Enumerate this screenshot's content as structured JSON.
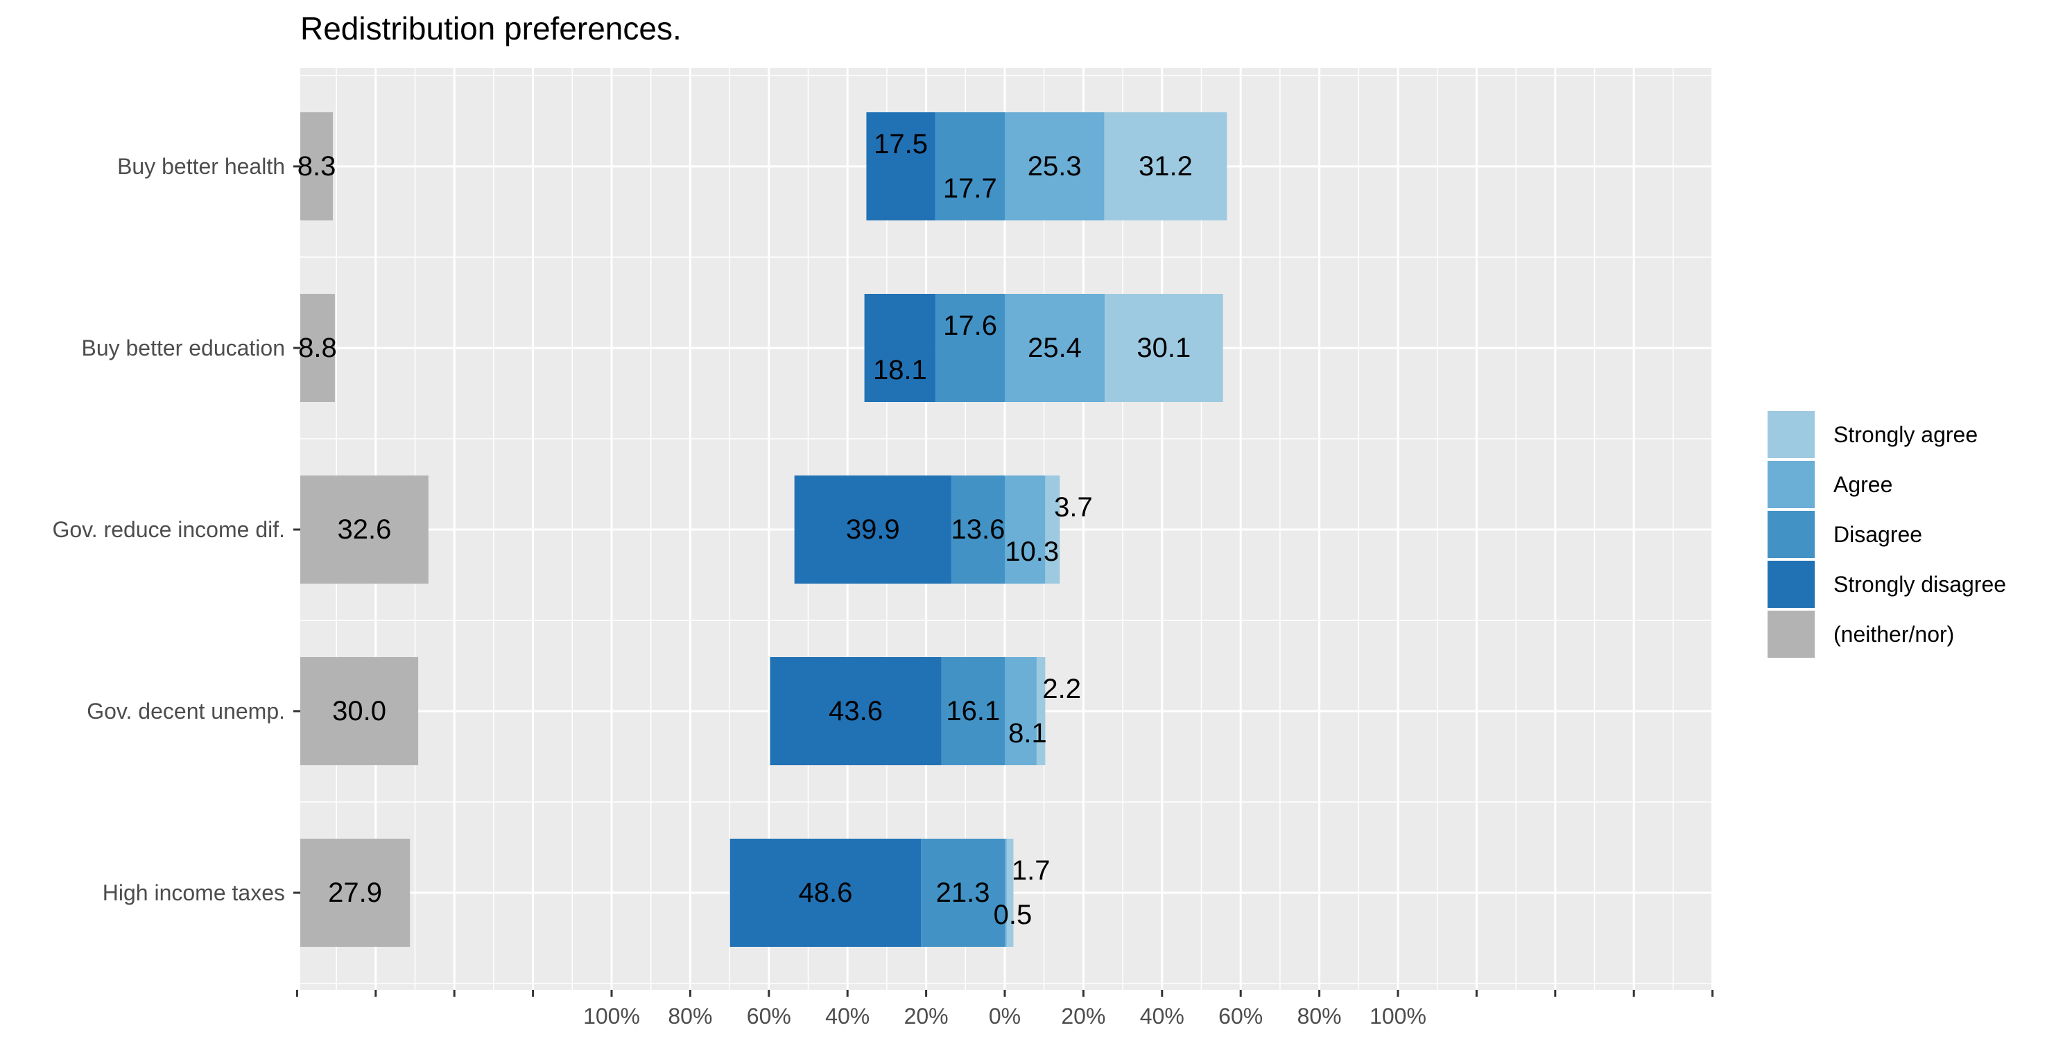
{
  "chart_data": {
    "type": "bar",
    "orientation": "horizontal",
    "layout": "diverging-stacked with separate neutral panel",
    "title": "Redistribution preferences.",
    "categories": [
      "Buy better health",
      "Buy better education",
      "Gov. reduce income dif.",
      "Gov. decent unemp.",
      "High income taxes"
    ],
    "series": [
      {
        "name": "Strongly agree",
        "color": "#9ECAE1",
        "side": "right",
        "values": [
          31.2,
          30.1,
          3.7,
          2.2,
          1.7
        ]
      },
      {
        "name": "Agree",
        "color": "#6BAED6",
        "side": "right",
        "values": [
          25.3,
          25.4,
          10.3,
          8.1,
          0.5
        ]
      },
      {
        "name": "Disagree",
        "color": "#4292C6",
        "side": "left",
        "values": [
          17.7,
          17.6,
          13.6,
          16.1,
          21.3
        ]
      },
      {
        "name": "Strongly disagree",
        "color": "#2171B5",
        "side": "left",
        "values": [
          17.5,
          18.1,
          39.9,
          43.6,
          48.6
        ]
      },
      {
        "name": "(neither/nor)",
        "color": "#B3B3B3",
        "side": "neutral",
        "values": [
          8.3,
          8.8,
          32.6,
          30.0,
          27.9
        ]
      }
    ],
    "value_labels": [
      [
        "17.5",
        "17.7",
        "25.3",
        "31.2",
        "8.3"
      ],
      [
        "18.1",
        "17.6",
        "25.4",
        "30.1",
        "8.8"
      ],
      [
        "39.9",
        "13.6",
        "10.3",
        "3.7",
        "32.6"
      ],
      [
        "43.6",
        "16.1",
        "8.1",
        "2.2",
        "30.0"
      ],
      [
        "48.6",
        "21.3",
        "0.5",
        "1.7",
        "27.9"
      ]
    ],
    "x_tick_labels": [
      "100%",
      "80%",
      "60%",
      "40%",
      "20%",
      "0%",
      "20%",
      "40%",
      "60%",
      "80%",
      "100%"
    ],
    "x_tick_values": [
      -100,
      -80,
      -60,
      -40,
      -20,
      0,
      20,
      40,
      60,
      80,
      100
    ],
    "xlim": [
      -180,
      180
    ],
    "legend_position": "right",
    "grid": true,
    "panel_background": "#EBEBEB"
  }
}
